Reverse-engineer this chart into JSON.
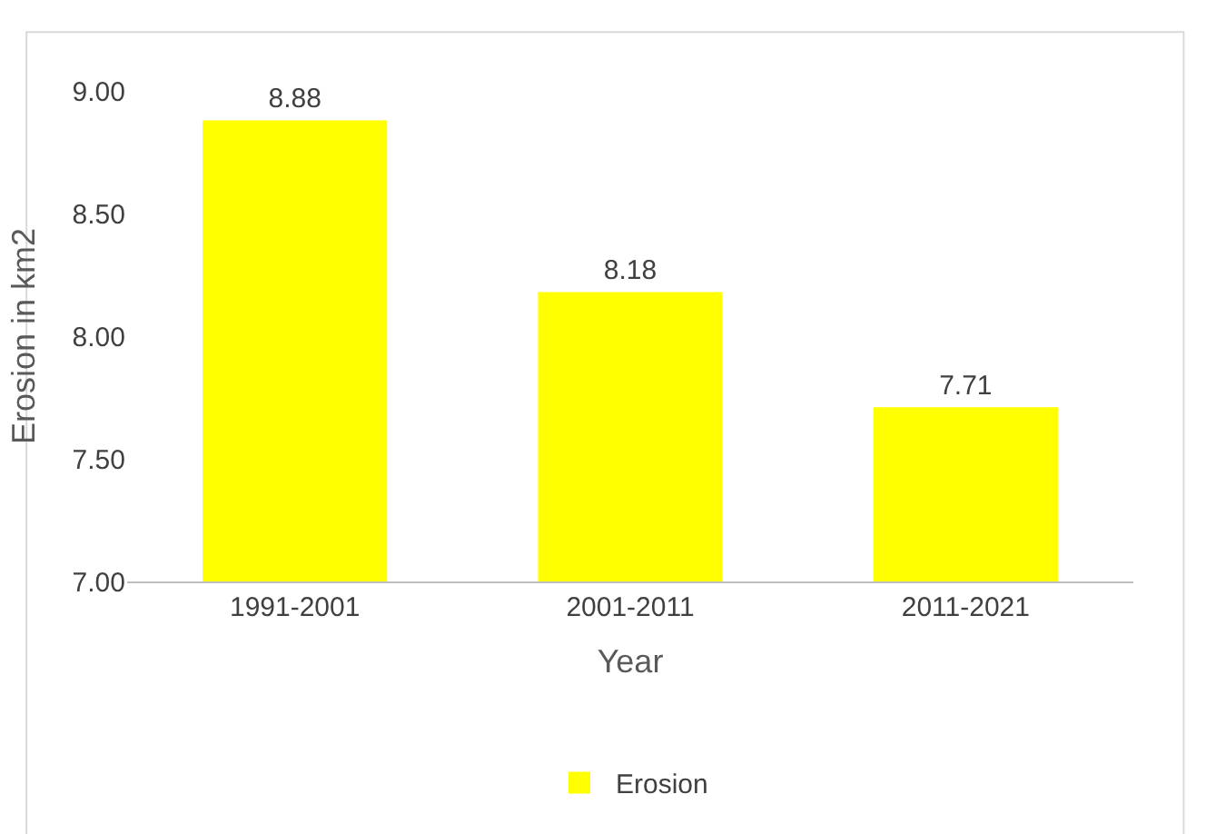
{
  "chart_data": {
    "type": "bar",
    "xlabel": "Year",
    "ylabel": "Erosion in km2",
    "categories": [
      "1991-2001",
      "2001-2011",
      "2011-2021"
    ],
    "series": [
      {
        "name": "Erosion",
        "color": "#ffff00",
        "values": [
          8.88,
          8.18,
          7.71
        ]
      }
    ],
    "ylim": [
      7,
      9
    ],
    "yticks": [
      {
        "value": 7,
        "label": "7.00"
      },
      {
        "value": 7.5,
        "label": "7.50"
      },
      {
        "value": 8,
        "label": "8.00"
      },
      {
        "value": 8.5,
        "label": "8.50"
      },
      {
        "value": 9,
        "label": "9.00"
      }
    ],
    "data_labels": true,
    "legend": "bottom"
  }
}
